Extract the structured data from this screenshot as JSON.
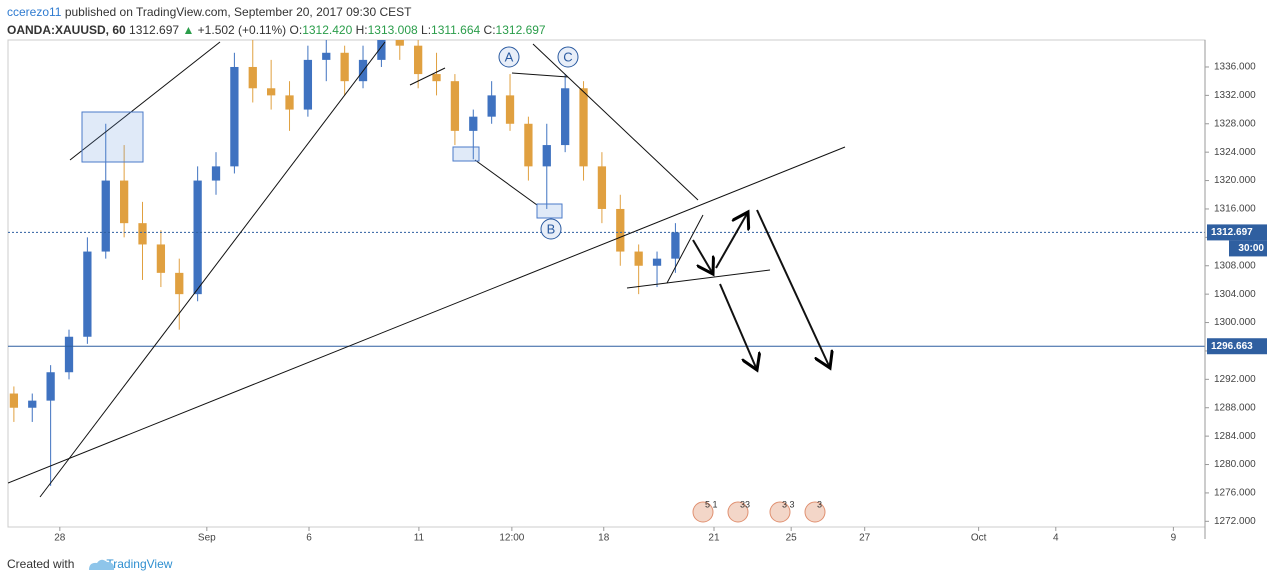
{
  "header": {
    "author": "ccerezo11",
    "published": "published on TradingView.com, September 20, 2017 09:30 CEST",
    "symbol": "OANDA:XAUUSD, 60",
    "last": "1312.697",
    "change": "+1.502 (+0.11%)",
    "o_label": "O:",
    "o": "1312.420",
    "h_label": "H:",
    "h": "1313.008",
    "l_label": "L:",
    "l": "1311.664",
    "c_label": "C:",
    "c": "1312.697"
  },
  "chart_data": {
    "type": "candlestick",
    "up_color": "#3f72c0",
    "down_color": "#e0a040",
    "x": [
      -1.25,
      -0.75,
      -0.25,
      0.25,
      0.75,
      1.25,
      1.75,
      2.25,
      2.75,
      3.25,
      3.75,
      4.25,
      4.75,
      5.25,
      5.75,
      6.25,
      6.75,
      7.25,
      7.75,
      8.25,
      8.75,
      9.25,
      9.75,
      10.25,
      10.75,
      11.25,
      11.75,
      12.25,
      12.75,
      13.25,
      13.75,
      14.25,
      14.75,
      15.25,
      15.75,
      16.25,
      16.75
    ],
    "open": [
      1290,
      1288,
      1289,
      1293,
      1298,
      1310,
      1320,
      1314,
      1311,
      1307,
      1304,
      1320,
      1322,
      1336,
      1333,
      1332,
      1330,
      1337,
      1338,
      1334,
      1337,
      1340,
      1339,
      1335,
      1334,
      1327,
      1329,
      1332,
      1328,
      1322,
      1325,
      1333,
      1322,
      1316,
      1310,
      1308,
      1309
    ],
    "high": [
      1291,
      1290,
      1294,
      1299,
      1312,
      1328,
      1325,
      1317,
      1313,
      1309,
      1322,
      1324,
      1338,
      1340,
      1337,
      1334,
      1339,
      1340,
      1339,
      1339,
      1341,
      1342,
      1340,
      1338,
      1335,
      1330,
      1334,
      1335,
      1329,
      1328,
      1335,
      1334,
      1324,
      1318,
      1311,
      1310,
      1314
    ],
    "low": [
      1286,
      1286,
      1277,
      1292,
      1297,
      1309,
      1312,
      1306,
      1305,
      1299,
      1303,
      1318,
      1321,
      1331,
      1330,
      1327,
      1329,
      1334,
      1332,
      1333,
      1336,
      1337,
      1333,
      1332,
      1325,
      1323,
      1328,
      1327,
      1320,
      1316,
      1324,
      1320,
      1314,
      1308,
      1304,
      1305,
      1307
    ],
    "close": [
      1288,
      1289,
      1293,
      1298,
      1310,
      1320,
      1314,
      1311,
      1307,
      1304,
      1320,
      1322,
      1336,
      1333,
      1332,
      1330,
      1337,
      1338,
      1334,
      1337,
      1340,
      1339,
      1335,
      1334,
      1327,
      1329,
      1332,
      1328,
      1322,
      1325,
      1333,
      1322,
      1316,
      1310,
      1308,
      1309,
      1312.697
    ],
    "xlim": [
      -1.41,
      31.16
    ],
    "xticks": [
      {
        "value": 0,
        "label": "28"
      },
      {
        "value": 4,
        "label": "Sep"
      },
      {
        "value": 6.78,
        "label": "6"
      },
      {
        "value": 9.77,
        "label": "11"
      },
      {
        "value": 12.3,
        "label": "12:00"
      },
      {
        "value": 14.8,
        "label": "18"
      },
      {
        "value": 17.8,
        "label": "21"
      },
      {
        "value": 19.9,
        "label": "25"
      },
      {
        "value": 21.9,
        "label": "27"
      },
      {
        "value": 25.0,
        "label": "Oct"
      },
      {
        "value": 27.1,
        "label": "4"
      },
      {
        "value": 30.3,
        "label": "9"
      }
    ],
    "ylim": [
      1271.2,
      1339.8
    ],
    "yticks": [
      {
        "value": 1272,
        "label": "1272.000"
      },
      {
        "value": 1276,
        "label": "1276.000"
      },
      {
        "value": 1280,
        "label": "1280.000"
      },
      {
        "value": 1284,
        "label": "1284.000"
      },
      {
        "value": 1288,
        "label": "1288.000"
      },
      {
        "value": 1292,
        "label": "1292.000"
      },
      {
        "value": 1296,
        "label": "1296.000"
      },
      {
        "value": 1300,
        "label": "1300.000"
      },
      {
        "value": 1304,
        "label": "1304.000"
      },
      {
        "value": 1308,
        "label": "1308.000"
      },
      {
        "value": 1312,
        "label": "1312.000"
      },
      {
        "value": 1316,
        "label": "1316.000"
      },
      {
        "value": 1320,
        "label": "1320.000"
      },
      {
        "value": 1324,
        "label": "1324.000"
      },
      {
        "value": 1328,
        "label": "1328.000"
      },
      {
        "value": 1332,
        "label": "1332.000"
      },
      {
        "value": 1336,
        "label": "1336.000"
      }
    ],
    "price_lines": [
      {
        "value": 1312.697,
        "label": "1312.697",
        "countdown": "30:00",
        "style": "dotted"
      },
      {
        "value": 1296.663,
        "label": "1296.663",
        "style": "solid"
      }
    ],
    "wave_labels": [
      "A",
      "B",
      "C"
    ],
    "events": [
      "5 1",
      "33",
      "3 3",
      "3"
    ]
  },
  "footer": {
    "created": "Created with",
    "brand": "TradingView"
  }
}
